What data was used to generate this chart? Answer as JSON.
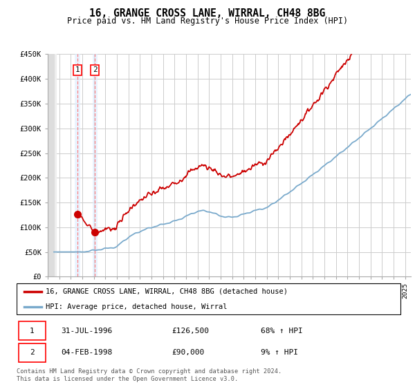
{
  "title": "16, GRANGE CROSS LANE, WIRRAL, CH48 8BG",
  "subtitle": "Price paid vs. HM Land Registry's House Price Index (HPI)",
  "ylim": [
    0,
    450000
  ],
  "yticks": [
    0,
    50000,
    100000,
    150000,
    200000,
    250000,
    300000,
    350000,
    400000,
    450000
  ],
  "ytick_labels": [
    "£0",
    "£50K",
    "£100K",
    "£150K",
    "£200K",
    "£250K",
    "£300K",
    "£350K",
    "£400K",
    "£450K"
  ],
  "transaction1": {
    "date_num": 1996.58,
    "price": 126500,
    "label": "1"
  },
  "transaction2": {
    "date_num": 1998.09,
    "price": 90000,
    "label": "2"
  },
  "legend_entries": [
    "16, GRANGE CROSS LANE, WIRRAL, CH48 8BG (detached house)",
    "HPI: Average price, detached house, Wirral"
  ],
  "table_rows": [
    {
      "num": "1",
      "date": "31-JUL-1996",
      "price": "£126,500",
      "change": "68% ↑ HPI"
    },
    {
      "num": "2",
      "date": "04-FEB-1998",
      "price": "£90,000",
      "change": "9% ↑ HPI"
    }
  ],
  "footer": "Contains HM Land Registry data © Crown copyright and database right 2024.\nThis data is licensed under the Open Government Licence v3.0.",
  "line_color_red": "#cc0000",
  "line_color_blue": "#7aaacc",
  "grid_color": "#cccccc",
  "highlight_color": "#ddeeff"
}
